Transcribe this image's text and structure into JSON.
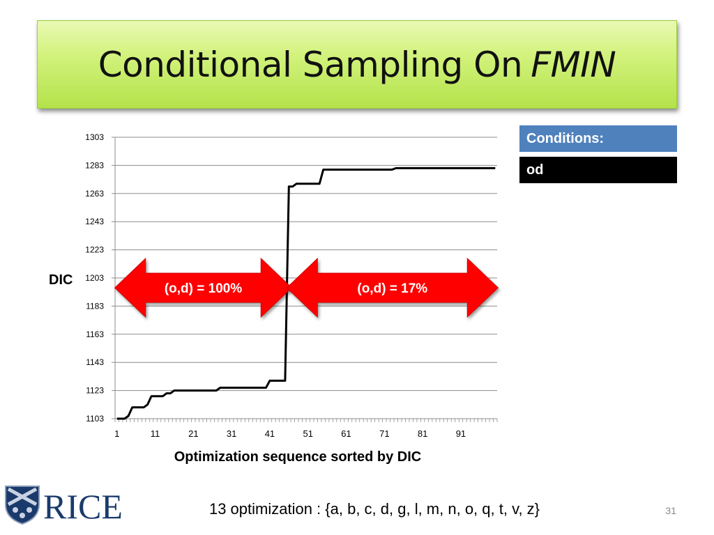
{
  "slide": {
    "title": "Conditional Sampling On",
    "title_italic": "FMIN",
    "page_number": "31",
    "footer": "13 optimization : {a, b, c, d, g, l, m, n, o, q, t, v, z}",
    "logo_text": "RICE"
  },
  "conditions": {
    "header": "Conditions:",
    "value": "od"
  },
  "colors": {
    "title_green": "#c8ee6a",
    "condition_blue": "#4f81bd",
    "arrow_red": "#ff0000",
    "logo_blue": "#1a3a6b"
  },
  "chart_data": {
    "type": "line",
    "title": "",
    "xlabel": "Optimization sequence sorted by DIC",
    "ylabel": "DIC",
    "xlim": [
      1,
      100
    ],
    "ylim": [
      1103,
      1303
    ],
    "x_ticks": [
      1,
      11,
      21,
      31,
      41,
      51,
      61,
      71,
      81,
      91
    ],
    "y_ticks": [
      1103,
      1123,
      1143,
      1163,
      1183,
      1203,
      1223,
      1243,
      1263,
      1283,
      1303
    ],
    "grid": true,
    "series": [
      {
        "color": "#000000",
        "points": [
          [
            1,
            1103
          ],
          [
            3,
            1103
          ],
          [
            4,
            1105
          ],
          [
            5,
            1111
          ],
          [
            8,
            1111
          ],
          [
            9,
            1113
          ],
          [
            10,
            1119
          ],
          [
            13,
            1119
          ],
          [
            14,
            1121
          ],
          [
            15,
            1121
          ],
          [
            16,
            1123
          ],
          [
            27,
            1123
          ],
          [
            28,
            1125
          ],
          [
            40,
            1125
          ],
          [
            41,
            1130
          ],
          [
            45,
            1130
          ],
          [
            46,
            1268
          ],
          [
            47,
            1268
          ],
          [
            48,
            1270
          ],
          [
            54,
            1270
          ],
          [
            55,
            1280
          ],
          [
            73,
            1280
          ],
          [
            74,
            1281
          ],
          [
            100,
            1281
          ]
        ]
      }
    ],
    "annotations": [
      {
        "text": "(o,d) = 100%",
        "x_from": 1,
        "x_to": 46,
        "y": 1196
      },
      {
        "text": "(o,d) = 17%",
        "x_from": 46,
        "x_to": 100,
        "y": 1196
      }
    ]
  }
}
